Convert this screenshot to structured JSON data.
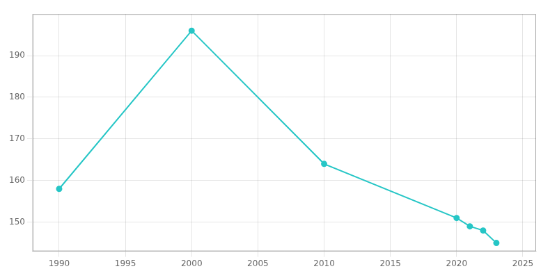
{
  "chart_data": {
    "type": "line",
    "x": [
      1990,
      2000,
      2010,
      2020,
      2021,
      2022,
      2023
    ],
    "values": [
      158,
      196,
      164,
      151,
      149,
      148,
      145
    ],
    "color": "#26c6c6",
    "marker": "circle",
    "xlim": [
      1988,
      2026
    ],
    "ylim": [
      143,
      200
    ],
    "xticks": [
      1990,
      1995,
      2000,
      2005,
      2010,
      2015,
      2020,
      2025
    ],
    "yticks": [
      150,
      160,
      170,
      180,
      190
    ],
    "grid": true
  }
}
